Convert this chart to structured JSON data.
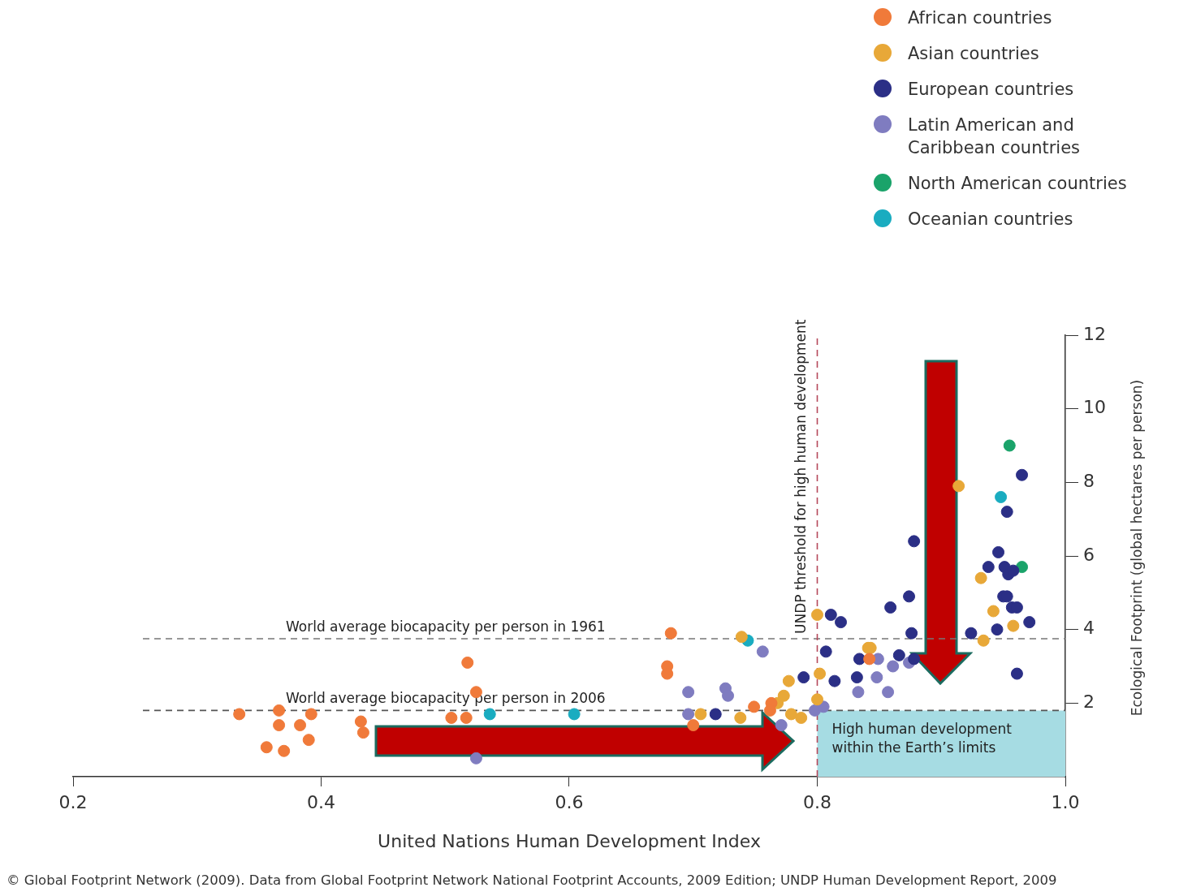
{
  "chart_data": {
    "type": "scatter",
    "xlabel": "United Nations Human Development Index",
    "ylabel": "Ecological Footprint (global hectares per person)",
    "annotations": [
      "© Global Footprint Network (2009). Data from Global Footprint Network National Footprint Accounts, 2009 Edition; UNDP Human Development Report, 2009"
    ],
    "xlim": [
      0.2,
      1.0
    ],
    "xticks": [
      0.2,
      0.4,
      0.6,
      0.8,
      {
        "value": 1,
        "label": "1.0"
      }
    ],
    "ylim": [
      0,
      12
    ],
    "yticks": [
      2,
      4,
      6,
      8,
      10,
      12
    ],
    "legend": "top right",
    "marker": "circle",
    "ref_lines": [
      {
        "axis": "y",
        "value": 3.75,
        "label": "World average biocapacity per person in 1961",
        "color": "#777777",
        "line_style": "dashed"
      },
      {
        "axis": "y",
        "value": 1.8,
        "label": "World average biocapacity per person in 2006",
        "color": "#555555",
        "line_style": "dashed"
      },
      {
        "axis": "x",
        "value": 0.8,
        "label": "UNDP threshold for high human development",
        "color": "#b5485a",
        "line_style": "dashed"
      }
    ],
    "bands": [
      {
        "axis": "y",
        "from": 0,
        "to": 1.8,
        "label": "High human development within the Earth’s limits",
        "color": "#a6dce3"
      }
    ],
    "series": [
      {
        "name": "African countries",
        "color": "#f07a3a",
        "x": [
          0.334,
          0.366,
          0.366,
          0.383,
          0.392,
          0.39,
          0.356,
          0.37,
          0.432,
          0.434,
          0.518,
          0.525,
          0.505,
          0.517,
          0.682,
          0.679,
          0.679,
          0.7,
          0.749,
          0.763,
          0.762,
          0.842
        ],
        "values": [
          1.7,
          1.8,
          1.4,
          1.4,
          1.7,
          1.0,
          0.8,
          0.7,
          1.5,
          1.2,
          3.1,
          2.3,
          1.6,
          1.6,
          3.9,
          3.0,
          2.8,
          1.4,
          1.9,
          2.0,
          1.8,
          3.2
        ]
      },
      {
        "name": "Asian countries",
        "color": "#e8a838",
        "x": [
          0.8,
          0.802,
          0.8,
          0.739,
          0.777,
          0.773,
          0.768,
          0.779,
          0.787,
          0.738,
          0.706,
          0.841,
          0.843,
          0.914,
          0.932,
          0.942,
          0.958,
          0.934
        ],
        "values": [
          4.4,
          2.8,
          2.1,
          3.8,
          2.6,
          2.2,
          2.0,
          1.7,
          1.6,
          1.6,
          1.7,
          3.5,
          3.5,
          7.9,
          5.4,
          4.5,
          4.1,
          3.7
        ]
      },
      {
        "name": "European countries",
        "color": "#2b2f86",
        "x": [
          0.811,
          0.819,
          0.807,
          0.814,
          0.789,
          0.718,
          0.834,
          0.832,
          0.866,
          0.874,
          0.878,
          0.859,
          0.876,
          0.878,
          0.924,
          0.938,
          0.946,
          0.951,
          0.954,
          0.958,
          0.95,
          0.953,
          0.957,
          0.961,
          0.945,
          0.971,
          0.961,
          0.965,
          0.953
        ],
        "values": [
          4.4,
          4.2,
          3.4,
          2.6,
          2.7,
          1.7,
          3.2,
          2.7,
          3.3,
          4.9,
          6.4,
          4.6,
          3.9,
          3.2,
          3.9,
          5.7,
          6.1,
          5.7,
          5.5,
          5.6,
          4.9,
          4.9,
          4.6,
          4.6,
          4.0,
          4.2,
          2.8,
          8.2,
          7.2
        ]
      },
      {
        "name": "Latin American and Caribbean countries",
        "color": "#7f7cc0",
        "x": [
          0.756,
          0.696,
          0.726,
          0.728,
          0.696,
          0.771,
          0.525,
          0.798,
          0.805,
          0.849,
          0.833,
          0.848,
          0.857,
          0.861,
          0.874
        ],
        "values": [
          3.4,
          2.3,
          2.4,
          2.2,
          1.7,
          1.4,
          0.5,
          1.8,
          1.9,
          3.2,
          2.3,
          2.7,
          2.3,
          3.0,
          3.1
        ]
      },
      {
        "name": "North American countries",
        "color": "#1aa36a",
        "x": [
          0.955,
          0.965
        ],
        "values": [
          9.0,
          5.7
        ]
      },
      {
        "name": "Oceanian countries",
        "color": "#1aacc0",
        "x": [
          0.744,
          0.536,
          0.604,
          0.948
        ],
        "values": [
          3.7,
          1.7,
          1.7,
          7.6
        ]
      }
    ]
  }
}
